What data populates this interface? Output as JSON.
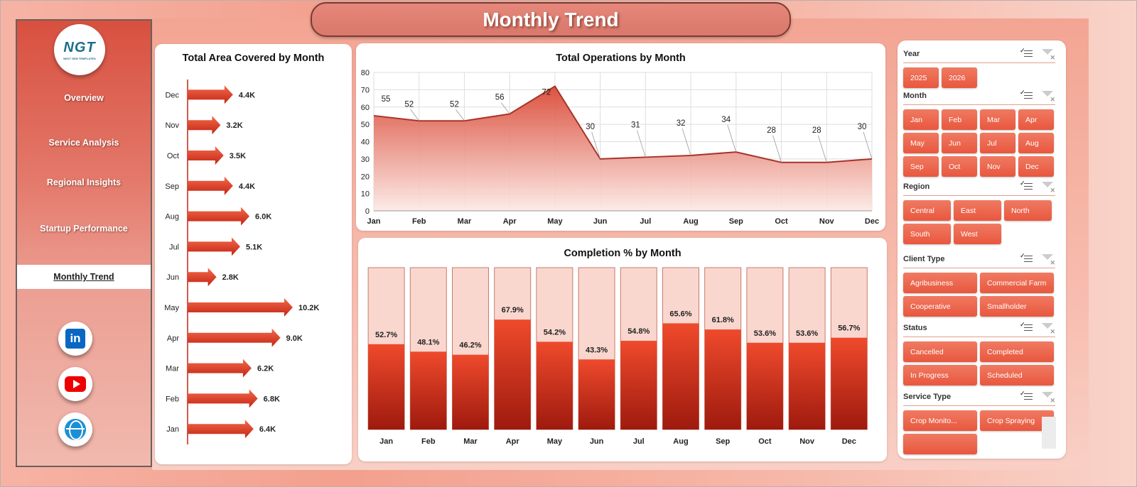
{
  "title": "Monthly Trend",
  "logo": {
    "mark": "NGT",
    "tagline": "NEXT GEN TEMPLATES"
  },
  "nav": [
    {
      "label": "Overview",
      "active": false
    },
    {
      "label": "Service Analysis",
      "active": false
    },
    {
      "label": "Regional Insights",
      "active": false
    },
    {
      "label": "Startup Performance",
      "active": false
    },
    {
      "label": "Monthly Trend",
      "active": true
    }
  ],
  "social": [
    "linkedin-icon",
    "youtube-icon",
    "website-globe-icon"
  ],
  "colors": {
    "accent": "#e8573e",
    "bar_dark": "#c9281a",
    "bar_light": "#fad7ce",
    "line": "#a8332a"
  },
  "chart_data": [
    {
      "type": "bar",
      "orientation": "horizontal",
      "title": "Total Area Covered by Month",
      "categories": [
        "Dec",
        "Nov",
        "Oct",
        "Sep",
        "Aug",
        "Jul",
        "Jun",
        "May",
        "Apr",
        "Mar",
        "Feb",
        "Jan"
      ],
      "values": [
        4.4,
        3.2,
        3.5,
        4.4,
        6.0,
        5.1,
        2.8,
        10.2,
        9.0,
        6.2,
        6.8,
        6.4
      ],
      "labels": [
        "4.4K",
        "3.2K",
        "3.5K",
        "4.4K",
        "6.0K",
        "5.1K",
        "2.8K",
        "10.2K",
        "9.0K",
        "6.2K",
        "6.8K",
        "6.4K"
      ]
    },
    {
      "type": "area",
      "title": "Total Operations by Month",
      "categories": [
        "Jan",
        "Feb",
        "Mar",
        "Apr",
        "May",
        "Jun",
        "Jul",
        "Aug",
        "Sep",
        "Oct",
        "Nov",
        "Dec"
      ],
      "values": [
        55,
        52,
        52,
        56,
        72,
        30,
        31,
        32,
        34,
        28,
        28,
        30
      ],
      "ylim": [
        0,
        80
      ],
      "yticks": [
        0,
        10,
        20,
        30,
        40,
        50,
        60,
        70,
        80
      ],
      "grid": true
    },
    {
      "type": "bar",
      "title": "Completion % by Month",
      "categories": [
        "Jan",
        "Feb",
        "Mar",
        "Apr",
        "May",
        "Jun",
        "Jul",
        "Aug",
        "Sep",
        "Oct",
        "Nov",
        "Dec"
      ],
      "values": [
        52.7,
        48.1,
        46.2,
        67.9,
        54.2,
        43.3,
        54.8,
        65.6,
        61.8,
        53.6,
        53.6,
        56.7
      ],
      "labels": [
        "52.7%",
        "48.1%",
        "46.2%",
        "67.9%",
        "54.2%",
        "43.3%",
        "54.8%",
        "65.6%",
        "61.8%",
        "53.6%",
        "53.6%",
        "56.7%"
      ],
      "ylim": [
        0,
        100
      ]
    }
  ],
  "slicers": [
    {
      "title": "Year",
      "items": [
        "2025",
        "2026"
      ],
      "cols": "yr"
    },
    {
      "title": "Month",
      "items": [
        "Jan",
        "Feb",
        "Mar",
        "Apr",
        "May",
        "Jun",
        "Jul",
        "Aug",
        "Sep",
        "Oct",
        "Nov",
        "Dec"
      ],
      "cols": "w4"
    },
    {
      "title": "Region",
      "items": [
        "Central",
        "East",
        "North",
        "South",
        "West"
      ],
      "cols": "w3"
    },
    {
      "title": "Client Type",
      "items": [
        "Agribusiness",
        "Commercial Farm",
        "Cooperative",
        "Smallholder"
      ],
      "cols": "w2"
    },
    {
      "title": "Status",
      "items": [
        "Cancelled",
        "Completed",
        "In Progress",
        "Scheduled"
      ],
      "cols": "w2"
    },
    {
      "title": "Service Type",
      "items": [
        "Crop Monito...",
        "Crop Spraying",
        ""
      ],
      "cols": "w2"
    }
  ]
}
